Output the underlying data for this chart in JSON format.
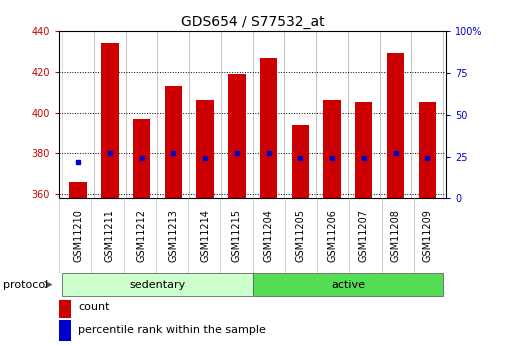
{
  "title": "GDS654 / S77532_at",
  "samples": [
    "GSM11210",
    "GSM11211",
    "GSM11212",
    "GSM11213",
    "GSM11214",
    "GSM11215",
    "GSM11204",
    "GSM11205",
    "GSM11206",
    "GSM11207",
    "GSM11208",
    "GSM11209"
  ],
  "count_values": [
    366,
    434,
    397,
    413,
    406,
    419,
    427,
    394,
    406,
    405,
    429,
    405
  ],
  "percentile_values": [
    376,
    380,
    378,
    380,
    378,
    380,
    380,
    378,
    378,
    378,
    380,
    378
  ],
  "y_min": 358,
  "y_max": 440,
  "y_ticks": [
    360,
    380,
    400,
    420,
    440
  ],
  "y2_ticks": [
    0,
    25,
    50,
    75,
    100
  ],
  "bar_color": "#cc0000",
  "percentile_color": "#0000cc",
  "groups": [
    {
      "label": "sedentary",
      "start": 0,
      "end": 6,
      "color": "#ccffcc"
    },
    {
      "label": "active",
      "start": 6,
      "end": 12,
      "color": "#55dd55"
    }
  ],
  "protocol_label": "protocol",
  "legend_count": "count",
  "legend_percentile": "percentile rank within the sample",
  "bar_width": 0.55,
  "left_tick_color": "#cc0000",
  "right_tick_color": "#0000cc",
  "title_fontsize": 10,
  "tick_fontsize": 7,
  "label_fontsize": 8,
  "group_fontsize": 8
}
